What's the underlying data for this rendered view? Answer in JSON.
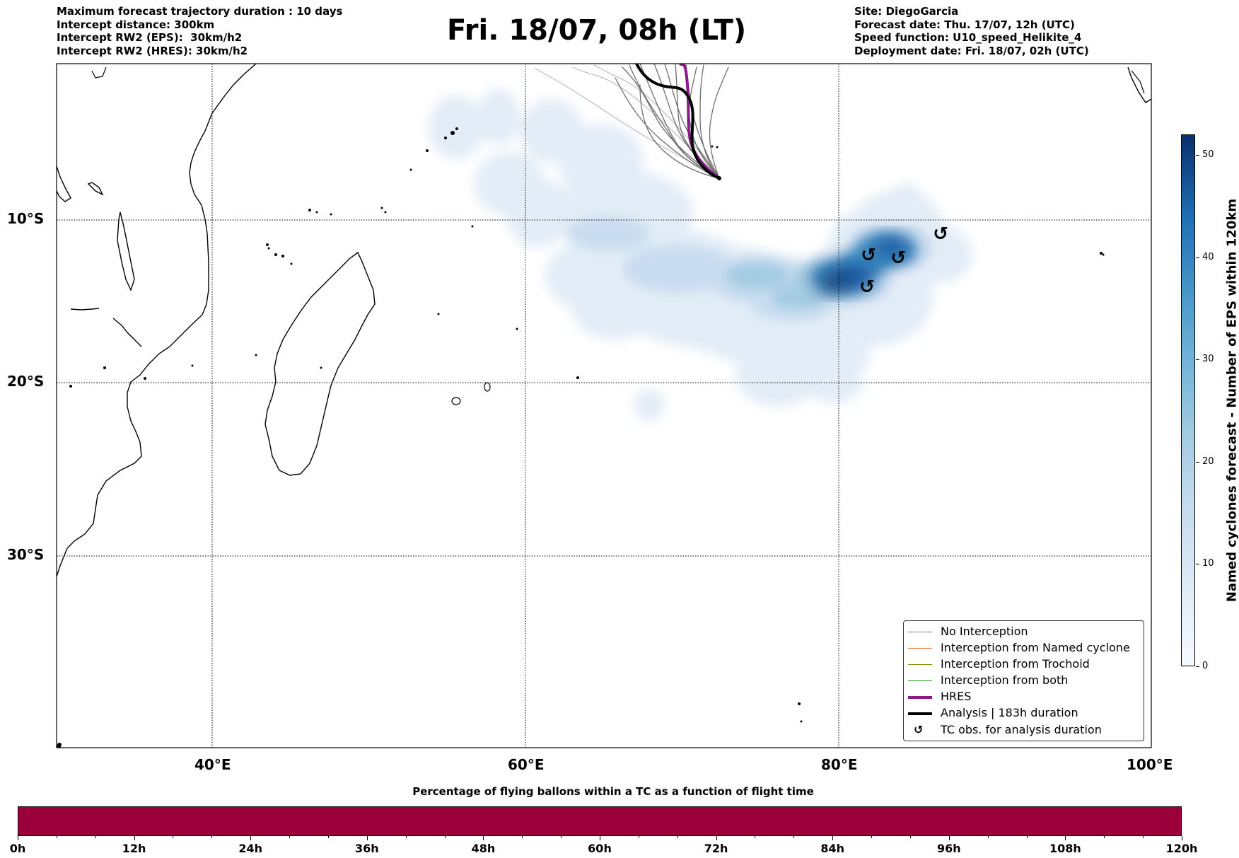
{
  "header": {
    "left_lines": [
      "Maximum forecast trajectory duration : 10 days",
      "Intercept distance: 300km",
      "Intercept RW2 (EPS):  30km/h2",
      "Intercept RW2 (HRES): 30km/h2"
    ],
    "title": "Fri. 18/07, 08h (LT)",
    "right_lines": [
      "Site: DiegoGarcia",
      "Forecast date: Thu. 17/07, 12h (UTC)",
      "Speed function: U10_speed_Helikite_4",
      "Deployment date: Fri. 18/07, 02h (UTC)"
    ]
  },
  "map": {
    "lat_labels": [
      "10°S",
      "20°S",
      "30°S"
    ],
    "lon_labels": [
      "40°E",
      "60°E",
      "80°E",
      "100°E"
    ],
    "lon_range": [
      30,
      100
    ],
    "lat_range_approx": [
      0.5,
      -41.5
    ],
    "gridlines": "dotted",
    "colormap": "Blues",
    "land_style": "coastline outlines only"
  },
  "legend": {
    "placement": "lower-right",
    "items": [
      {
        "label": "No Interception",
        "color": "#808080",
        "kind": "line-thin"
      },
      {
        "label": "Interception from Named cyclone",
        "color": "#ff6a2a",
        "kind": "line-thin"
      },
      {
        "label": "Interception from Trochoid",
        "color": "#8b8b00",
        "kind": "line-thin"
      },
      {
        "label": "Interception from both",
        "color": "#2ca02c",
        "kind": "line-thin"
      },
      {
        "label": "HRES",
        "color": "#8b1a8b",
        "kind": "line-thick"
      },
      {
        "label": "Analysis | 183h duration",
        "color": "#000000",
        "kind": "line-thick"
      },
      {
        "label": "TC obs. for analysis duration",
        "color": "#000000",
        "kind": "glyph",
        "glyph": "↺"
      }
    ]
  },
  "colorbar": {
    "label": "Named cyclones forecast - Number of EPS within 120km",
    "ticks": [
      "0",
      "10",
      "20",
      "30",
      "40",
      "50"
    ],
    "range": [
      0,
      52
    ],
    "colors": [
      "#f7fbff",
      "#08306b"
    ]
  },
  "progress": {
    "title": "Percentage of flying ballons within a TC as a function of flight time",
    "ticks": [
      "0h",
      "12h",
      "24h",
      "36h",
      "48h",
      "60h",
      "72h",
      "84h",
      "96h",
      "108h",
      "120h"
    ],
    "fill_fraction": 1.0,
    "fill_color": "#9b003a"
  },
  "tc_observations": {
    "glyph": "↺",
    "positions": [
      {
        "lon": 81.9,
        "lat": -12.2
      },
      {
        "lon": 83.8,
        "lat": -12.4
      },
      {
        "lon": 81.8,
        "lat": -14.2
      },
      {
        "lon": 86.5,
        "lat": -10.9
      }
    ]
  }
}
